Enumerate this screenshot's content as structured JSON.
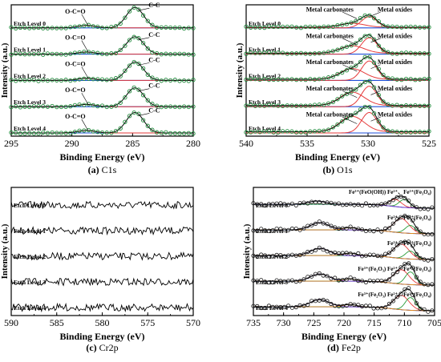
{
  "chart_data": [
    {
      "type": "line",
      "id": "c1s",
      "caption_letter": "(a)",
      "caption_text": "C1s",
      "xlabel": "Binding Energy (eV)",
      "ylabel": "Intensity (a.u.)",
      "xlim": [
        295,
        280
      ],
      "xticks": [
        295,
        290,
        285,
        280
      ],
      "levels": [
        "Etch Level 0",
        "Etch Level 1",
        "Etch Level 2",
        "Etch Level 3",
        "Etch Level 4"
      ],
      "peaks": [
        {
          "name": "O-C=O",
          "center": 288.8
        },
        {
          "name": "C-C",
          "center": 284.8
        }
      ],
      "amp": [
        1.0,
        0.85,
        0.9,
        0.92,
        1.0
      ]
    },
    {
      "type": "line",
      "id": "o1s",
      "caption_letter": "(b)",
      "caption_text": "O1s",
      "xlabel": "Binding Energy (eV)",
      "ylabel": "Intensity (a.u.)",
      "xlim": [
        540,
        525
      ],
      "xticks": [
        540,
        535,
        530,
        525
      ],
      "levels": [
        "Etch Level 0",
        "Etch Level 1",
        "Etch Level 2",
        "Etch Level 3",
        "Etch Level 4"
      ],
      "peaks": [
        {
          "name": "Metal carbonates",
          "center": 531.3
        },
        {
          "name": "Metal oxides",
          "center": 529.9
        }
      ],
      "amp": [
        0.55,
        0.8,
        0.95,
        1.0,
        1.0
      ]
    },
    {
      "type": "line",
      "id": "cr2p",
      "caption_letter": "(c)",
      "caption_text": "Cr2p",
      "xlabel": "Binding Energy (eV)",
      "ylabel": "Intensity (a.u.)",
      "xlim": [
        590,
        570
      ],
      "xticks": [
        590,
        585,
        580,
        575,
        570
      ],
      "levels": [
        "Etch Level 0",
        "Etch Level 1",
        "Etch Level 2",
        "Etch Level 3",
        "Etch Level 4"
      ]
    },
    {
      "type": "line",
      "id": "fe2p",
      "caption_letter": "(d)",
      "caption_text": "Fe2p",
      "xlabel": "Binding Energy (eV)",
      "ylabel": "Intensity (a.u.)",
      "xlim": [
        735,
        705
      ],
      "xticks": [
        735,
        730,
        725,
        720,
        715,
        710,
        705
      ],
      "levels": [
        "Etch Level 0",
        "Etch Level 1",
        "Etch Level 2",
        "Etch Level 3",
        "Etch Level 4"
      ],
      "annotations": [
        "Fe³⁺(FeO(OH)) Fe²⁺、Fe³⁺(Fe₃O₄)",
        "Fe²⁺、Fe³⁺(Fe₃O₄)",
        "Fe²⁺、Fe³⁺(Fe₃O₄)",
        "Fe³⁺(Fe₂O₃) Fe²⁺、Fe³⁺(Fe₃O₄)",
        "Fe³⁺(Fe₂O₃) Fe²⁺、Fe³⁺(Fe₃O₄)"
      ]
    }
  ]
}
